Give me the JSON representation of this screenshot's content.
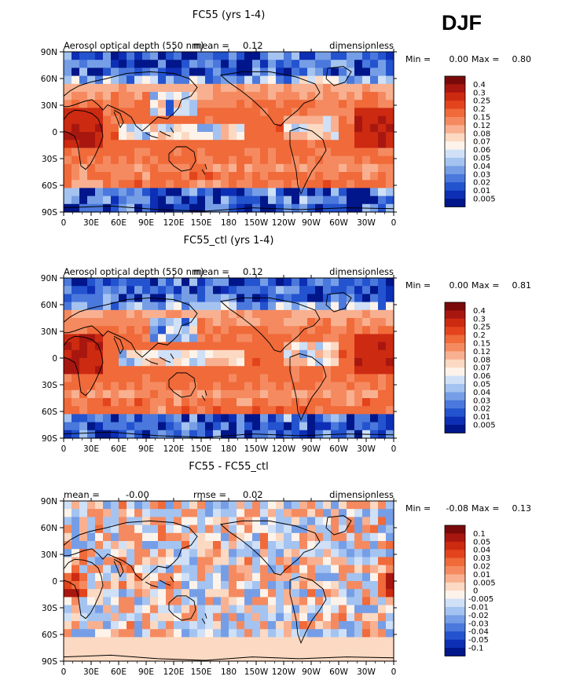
{
  "season": "DJF",
  "chart_data": [
    {
      "type": "heatmap",
      "title": "FC55 (yrs 1-4)",
      "subtitle": "Aerosol optical depth (550 nm)",
      "mean_label": "mean =",
      "mean_value": "0.12",
      "units": "dimensionless",
      "min_label": "Min =",
      "min_value": "0.00",
      "max_label": "Max =",
      "max_value": "0.80",
      "x_ticks": [
        "0",
        "30E",
        "60E",
        "90E",
        "120E",
        "150E",
        "180",
        "150W",
        "120W",
        "90W",
        "60W",
        "30W",
        "0"
      ],
      "y_ticks": [
        "90N",
        "60N",
        "30N",
        "0",
        "30S",
        "60S",
        "90S"
      ],
      "legend_levels": [
        "0.4",
        "0.3",
        "0.25",
        "0.2",
        "0.15",
        "0.12",
        "0.08",
        "0.07",
        "0.06",
        "0.05",
        "0.04",
        "0.03",
        "0.02",
        "0.01",
        "0.005"
      ],
      "legend_colors": [
        "#7a0a0a",
        "#a8170f",
        "#cd2a12",
        "#e3441c",
        "#f06a3a",
        "#f58a60",
        "#f8b090",
        "#fcd9c2",
        "#fdf3ea",
        "#cfe0f7",
        "#a4c3f0",
        "#769ee6",
        "#4a78dc",
        "#2453cf",
        "#0d2fb5",
        "#00168a"
      ],
      "panel": "a"
    },
    {
      "type": "heatmap",
      "title": "FC55_ctl (yrs 1-4)",
      "subtitle": "Aerosol optical depth (550 nm)",
      "mean_label": "mean =",
      "mean_value": "0.12",
      "units": "dimensionless",
      "min_label": "Min =",
      "min_value": "0.00",
      "max_label": "Max =",
      "max_value": "0.81",
      "x_ticks": [
        "0",
        "30E",
        "60E",
        "90E",
        "120E",
        "150E",
        "180",
        "150W",
        "120W",
        "90W",
        "60W",
        "30W",
        "0"
      ],
      "y_ticks": [
        "90N",
        "60N",
        "30N",
        "0",
        "30S",
        "60S",
        "90S"
      ],
      "legend_levels": [
        "0.4",
        "0.3",
        "0.25",
        "0.2",
        "0.15",
        "0.12",
        "0.08",
        "0.07",
        "0.06",
        "0.05",
        "0.04",
        "0.03",
        "0.02",
        "0.01",
        "0.005"
      ],
      "legend_colors": [
        "#7a0a0a",
        "#a8170f",
        "#cd2a12",
        "#e3441c",
        "#f06a3a",
        "#f58a60",
        "#f8b090",
        "#fcd9c2",
        "#fdf3ea",
        "#cfe0f7",
        "#a4c3f0",
        "#769ee6",
        "#4a78dc",
        "#2453cf",
        "#0d2fb5",
        "#00168a"
      ],
      "panel": "b"
    },
    {
      "type": "heatmap",
      "title": "FC55 - FC55_ctl",
      "mean_label": "mean =",
      "mean_value": "-0.00",
      "rmse_label": "rmse =",
      "rmse_value": "0.02",
      "units": "dimensionless",
      "min_label": "Min =",
      "min_value": "-0.08",
      "max_label": "Max =",
      "max_value": "0.13",
      "x_ticks": [
        "0",
        "30E",
        "60E",
        "90E",
        "120E",
        "150E",
        "180",
        "150W",
        "120W",
        "90W",
        "60W",
        "30W",
        "0"
      ],
      "y_ticks": [
        "90N",
        "60N",
        "30N",
        "0",
        "30S",
        "60S",
        "90S"
      ],
      "legend_levels": [
        "0.1",
        "0.05",
        "0.04",
        "0.03",
        "0.02",
        "0.01",
        "0.005",
        "0",
        "-0.005",
        "-0.01",
        "-0.02",
        "-0.03",
        "-0.04",
        "-0.05",
        "-0.1"
      ],
      "legend_colors": [
        "#7a0a0a",
        "#a8170f",
        "#cd2a12",
        "#e3441c",
        "#f06a3a",
        "#f58a60",
        "#f8b090",
        "#fcd9c2",
        "#fdf3ea",
        "#cfe0f7",
        "#a4c3f0",
        "#769ee6",
        "#4a78dc",
        "#2453cf",
        "#0d2fb5",
        "#00168a"
      ],
      "panel": "c"
    }
  ]
}
